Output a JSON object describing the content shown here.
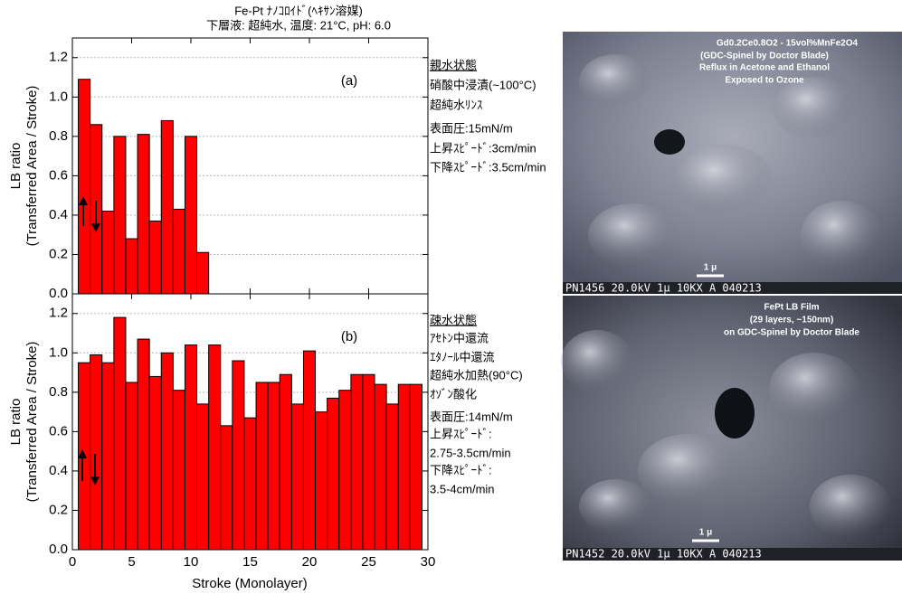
{
  "figure": {
    "title": [
      "Fe-Pt ﾅﾉｺﾛｲﾄﾞ(ﾍｷｻﾝ溶媒)",
      "下層液: 超純水, 温度: 21°C,  pH: 6.0"
    ],
    "xlabel": "Stroke (Monolayer)"
  },
  "chart_data": [
    {
      "type": "bar",
      "panel_label": "(a)",
      "ylabel": [
        "LB ratio",
        "(Transferred Area / Stroke)"
      ],
      "color": "#ff0000",
      "x": [
        1,
        2,
        3,
        4,
        5,
        6,
        7,
        8,
        9,
        10,
        11
      ],
      "values": [
        1.09,
        0.86,
        0.42,
        0.8,
        0.28,
        0.81,
        0.37,
        0.88,
        0.43,
        0.8,
        0.21
      ],
      "xlim": [
        0,
        30
      ],
      "ylim": [
        0,
        1.3
      ],
      "yticks": [
        {
          "value": 0,
          "label": "0.0"
        },
        0.2,
        0.4,
        0.6,
        0.8,
        {
          "value": 1,
          "label": "1.0"
        },
        1.2
      ],
      "grid": true,
      "notes": [
        "親水状態",
        "硝酸中浸漬(~100°C)",
        "超純水ﾘﾝｽ",
        "表面圧:15mN/m",
        "上昇ｽﾋﾟｰﾄﾞ:3cm/min",
        "下降ｽﾋﾟｰﾄﾞ:3.5cm/min"
      ]
    },
    {
      "type": "bar",
      "panel_label": "(b)",
      "ylabel": [
        "LB ratio",
        "(Transferred Area / Stroke)"
      ],
      "color": "#ff0000",
      "x": [
        1,
        2,
        3,
        4,
        5,
        6,
        7,
        8,
        9,
        10,
        11,
        12,
        13,
        14,
        15,
        16,
        17,
        18,
        19,
        20,
        21,
        22,
        23,
        24,
        25,
        26,
        27,
        28,
        29
      ],
      "values": [
        0.95,
        0.99,
        0.95,
        1.18,
        0.85,
        1.07,
        0.88,
        1.0,
        0.81,
        1.04,
        0.74,
        1.04,
        0.63,
        0.96,
        0.67,
        0.85,
        0.85,
        0.89,
        0.74,
        1.01,
        0.7,
        0.77,
        0.81,
        0.89,
        0.89,
        0.84,
        0.74,
        0.84,
        0.84
      ],
      "xlim": [
        0,
        30
      ],
      "xticks": [
        0,
        5,
        10,
        15,
        20,
        25,
        30
      ],
      "ylim": [
        0,
        1.3
      ],
      "yticks": [
        {
          "value": 0,
          "label": "0.0"
        },
        0.2,
        0.4,
        0.6,
        0.8,
        {
          "value": 1,
          "label": "1.0"
        },
        1.2
      ],
      "grid": true,
      "notes": [
        "疎水状態",
        "ｱｾﾄﾝ中還流",
        "ｴﾀﾉｰﾙ中還流",
        "超純水加熱(90°C)",
        "ｵｿﾞﾝ酸化",
        "表面圧:14mN/m",
        "上昇ｽﾋﾟｰﾄﾞ:",
        "2.75-3.5cm/min",
        "下降ｽﾋﾟｰﾄﾞ:",
        "3.5-4cm/min"
      ]
    }
  ],
  "images": [
    {
      "caption": [
        "Gd0.2Ce0.8O2  -  15vol%MnFe2O4",
        "(GDC-Spinel by Doctor Blade)",
        "Reflux in Acetone and Ethanol",
        "Exposed to Ozone"
      ],
      "scale": "1 μ",
      "info": "PN1456 20.0kV   1μ   10KX A 040213"
    },
    {
      "caption": [
        "FePt LB Film",
        "(29 layers, ~150nm)",
        "on GDC-Spinel by Doctor Blade"
      ],
      "scale": "1 μ",
      "info": "PN1452 20.0kV   1μ   10KX A 040213"
    }
  ]
}
